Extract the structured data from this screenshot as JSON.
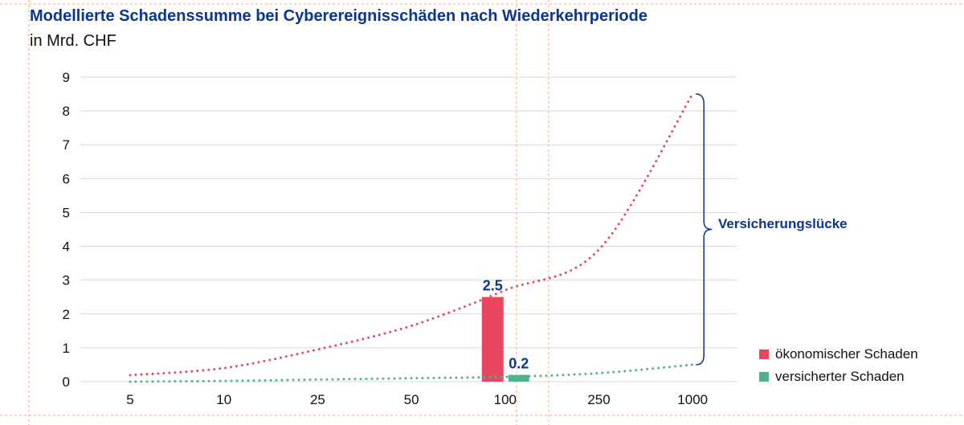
{
  "chart_data": {
    "type": "line",
    "title": "Modellierte Schadenssumme bei Cyberereignisschäden nach Wiederkehrperiode",
    "subtitle": "in Mrd. CHF",
    "categories": [
      "5",
      "10",
      "25",
      "50",
      "100",
      "250",
      "1000"
    ],
    "ylim": [
      0,
      9
    ],
    "yticks": [
      "0",
      "1",
      "2",
      "3",
      "4",
      "5",
      "6",
      "7",
      "8",
      "9"
    ],
    "grid": true,
    "legend_placement": "bottom-right",
    "series": [
      {
        "name": "ökonomischer Schaden",
        "color": "#e8475f",
        "style": "dotted",
        "values": [
          0.19,
          0.4,
          0.95,
          1.65,
          2.7,
          3.9,
          8.5
        ]
      },
      {
        "name": "versicherter Schaden",
        "color": "#4db38a",
        "style": "dotted",
        "values": [
          0.0,
          0.02,
          0.06,
          0.1,
          0.14,
          0.25,
          0.5
        ]
      }
    ],
    "bars": [
      {
        "category": "100",
        "series": "ökonomischer Schaden",
        "value": 2.5,
        "label": "2.5",
        "color": "#e8475f"
      },
      {
        "category": "100",
        "series": "versicherter Schaden",
        "value": 0.2,
        "label": "0.2",
        "color": "#4db38a"
      }
    ],
    "annotation": {
      "text": "Versicherungslücke",
      "category": "1000",
      "from": 0.5,
      "to": 8.5,
      "color": "#0a3590"
    }
  },
  "colors": {
    "title": "#0a3590",
    "guides": "#f4a582"
  }
}
